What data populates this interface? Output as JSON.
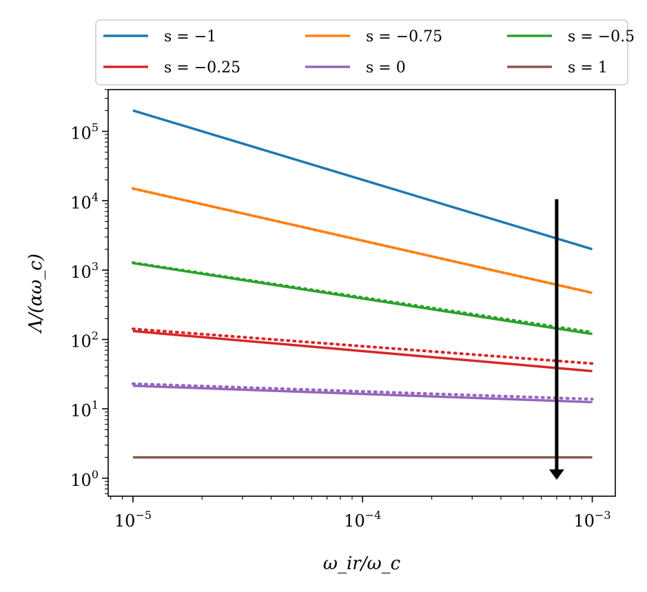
{
  "chart_data": {
    "type": "line",
    "xlabel": "ω_ir/ω_c",
    "ylabel": "Λ/(αω_c)",
    "xscale": "log",
    "yscale": "log",
    "xlim": [
      7.8e-06,
      0.00126
    ],
    "ylim": [
      0.55,
      400000
    ],
    "grid": false,
    "legend_placement": "top, outside, 3 columns",
    "x_ticks": [
      {
        "value": 1e-05,
        "base": "10",
        "exp": "−5"
      },
      {
        "value": 0.0001,
        "base": "10",
        "exp": "−4"
      },
      {
        "value": 0.001,
        "base": "10",
        "exp": "−3"
      }
    ],
    "y_ticks": [
      {
        "value": 1,
        "base": "10",
        "exp": "0"
      },
      {
        "value": 10,
        "base": "10",
        "exp": "1"
      },
      {
        "value": 100,
        "base": "10",
        "exp": "2"
      },
      {
        "value": 1000,
        "base": "10",
        "exp": "3"
      },
      {
        "value": 10000,
        "base": "10",
        "exp": "4"
      },
      {
        "value": 100000,
        "base": "10",
        "exp": "5"
      }
    ],
    "x": [
      1e-05,
      0.001
    ],
    "series": [
      {
        "name": "s = −1",
        "color": "#1f77b4",
        "values": [
          200000,
          2000
        ],
        "dotted": null
      },
      {
        "name": "s = −0.75",
        "color": "#ff7f0e",
        "values": [
          15000,
          470
        ],
        "dotted": [
          15000,
          470
        ]
      },
      {
        "name": "s = −0.5",
        "color": "#2ca02c",
        "values": [
          1260,
          120
        ],
        "dotted": [
          1280,
          127
        ]
      },
      {
        "name": "s = −0.25",
        "color": "#d62728",
        "values": [
          132,
          35
        ],
        "dotted": [
          142,
          45
        ]
      },
      {
        "name": "s = 0",
        "color": "#9467bd",
        "values": [
          21.5,
          12.5
        ],
        "dotted": [
          23,
          13.8
        ]
      },
      {
        "name": "s = 1",
        "color": "#8c564b",
        "values": [
          2,
          2
        ],
        "dotted": null
      }
    ],
    "annotation": {
      "type": "arrow",
      "direction": "down",
      "x": 0.0007,
      "y_from": 10500,
      "y_to": 0.95,
      "color": "#000000"
    }
  }
}
